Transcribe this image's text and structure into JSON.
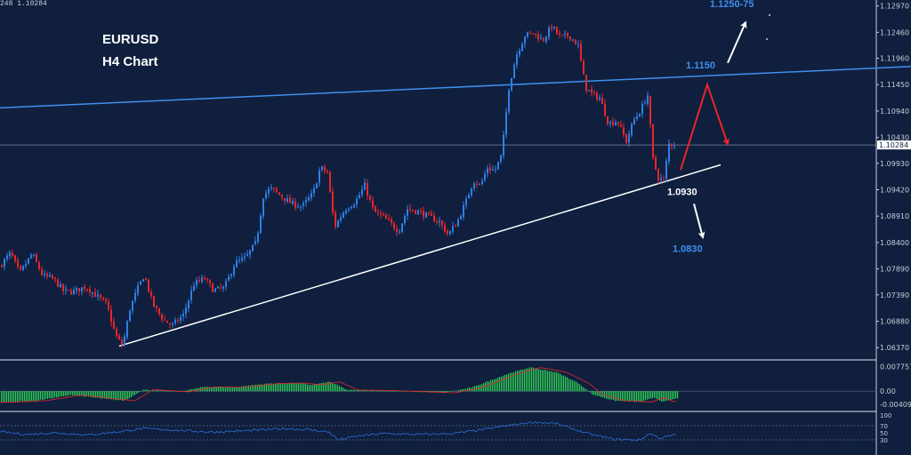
{
  "chart_data": {
    "type": "candlestick",
    "symbol": "EURUSD",
    "timeframe": "H4 Chart",
    "header_readout": "248 1.10284",
    "current_price": 1.10284,
    "current_price_label": "1.10284",
    "ylim": [
      1.0615,
      1.1305
    ],
    "price_ticks": [
      {
        "label": "1.12970",
        "value": 1.1297
      },
      {
        "label": "1.12460",
        "value": 1.1246
      },
      {
        "label": "1.11960",
        "value": 1.1196
      },
      {
        "label": "1.11450",
        "value": 1.1145
      },
      {
        "label": "1.10940",
        "value": 1.1094
      },
      {
        "label": "1.10430",
        "value": 1.1043
      },
      {
        "label": "1.09930",
        "value": 1.0993
      },
      {
        "label": "1.09420",
        "value": 1.0942
      },
      {
        "label": "1.08910",
        "value": 1.0891
      },
      {
        "label": "1.08400",
        "value": 1.084
      },
      {
        "label": "1.07890",
        "value": 1.0789
      },
      {
        "label": "1.07390",
        "value": 1.0739
      },
      {
        "label": "1.06880",
        "value": 1.0688
      },
      {
        "label": "1.06370",
        "value": 1.0637
      }
    ],
    "price_path": [
      [
        0,
        1.0795
      ],
      [
        12,
        1.082
      ],
      [
        22,
        1.078
      ],
      [
        36,
        1.0818
      ],
      [
        48,
        1.0776
      ],
      [
        60,
        1.077
      ],
      [
        72,
        1.0745
      ],
      [
        84,
        1.0746
      ],
      [
        96,
        1.0755
      ],
      [
        108,
        1.0738
      ],
      [
        120,
        1.072
      ],
      [
        130,
        1.066
      ],
      [
        138,
        1.064
      ],
      [
        146,
        1.0712
      ],
      [
        154,
        1.0748
      ],
      [
        162,
        1.0778
      ],
      [
        172,
        1.072
      ],
      [
        184,
        1.069
      ],
      [
        194,
        1.068
      ],
      [
        206,
        1.07
      ],
      [
        218,
        1.076
      ],
      [
        230,
        1.077
      ],
      [
        240,
        1.0748
      ],
      [
        252,
        1.0752
      ],
      [
        264,
        1.08
      ],
      [
        276,
        1.081
      ],
      [
        288,
        1.084
      ],
      [
        296,
        1.093
      ],
      [
        304,
        1.0945
      ],
      [
        316,
        1.093
      ],
      [
        328,
        1.0915
      ],
      [
        340,
        1.091
      ],
      [
        352,
        1.0935
      ],
      [
        360,
        1.0985
      ],
      [
        368,
        1.0975
      ],
      [
        376,
        1.087
      ],
      [
        388,
        1.0905
      ],
      [
        400,
        1.092
      ],
      [
        410,
        1.095
      ],
      [
        420,
        1.09
      ],
      [
        430,
        1.089
      ],
      [
        440,
        1.0875
      ],
      [
        448,
        1.0862
      ],
      [
        458,
        1.0905
      ],
      [
        470,
        1.09
      ],
      [
        482,
        1.089
      ],
      [
        494,
        1.088
      ],
      [
        504,
        1.0855
      ],
      [
        514,
        1.088
      ],
      [
        524,
        1.092
      ],
      [
        532,
        1.096
      ],
      [
        540,
        1.095
      ],
      [
        548,
        1.0985
      ],
      [
        556,
        1.0978
      ],
      [
        564,
        1.101
      ],
      [
        572,
        1.114
      ],
      [
        580,
        1.12
      ],
      [
        590,
        1.124
      ],
      [
        600,
        1.1245
      ],
      [
        610,
        1.123
      ],
      [
        620,
        1.1258
      ],
      [
        630,
        1.1236
      ],
      [
        640,
        1.124
      ],
      [
        650,
        1.122
      ],
      [
        658,
        1.114
      ],
      [
        666,
        1.1125
      ],
      [
        674,
        1.112
      ],
      [
        684,
        1.107
      ],
      [
        694,
        1.1075
      ],
      [
        704,
        1.1035
      ],
      [
        712,
        1.1075
      ],
      [
        720,
        1.1095
      ],
      [
        728,
        1.1125
      ],
      [
        734,
        1.1
      ],
      [
        740,
        1.0965
      ],
      [
        746,
        1.096
      ],
      [
        752,
        1.103
      ],
      [
        760,
        1.103
      ]
    ],
    "trendlines": [
      {
        "name": "blue-resistance",
        "color": "#3f8ff0",
        "points": [
          [
            0,
            1.11
          ],
          [
            1024,
            1.118
          ]
        ]
      },
      {
        "name": "white-support",
        "color": "#ffffff",
        "points": [
          [
            134,
            1.064
          ],
          [
            810,
            1.099
          ]
        ]
      }
    ],
    "projections": [
      {
        "name": "red-scenario",
        "color": "#e8262c",
        "points": [
          [
            765,
            1.098
          ],
          [
            795,
            1.1145
          ],
          [
            818,
            1.103
          ]
        ]
      },
      {
        "name": "white-up-arrow",
        "color": "#ffffff",
        "points": [
          [
            818,
            1.1187
          ],
          [
            838,
            1.1265
          ]
        ]
      },
      {
        "name": "white-down-arrow",
        "color": "#ffffff",
        "points": [
          [
            780,
            1.0915
          ],
          [
            790,
            1.085
          ]
        ]
      }
    ],
    "annotations": [
      {
        "text": "1.1250-75",
        "color": "#3f8ff0",
        "anchor_value": 1.1295
      },
      {
        "text": "1.1150",
        "color": "#3f8ff0",
        "anchor_value": 1.1176
      },
      {
        "text": "1.0930",
        "color": "#ffffff",
        "anchor_value": 1.0932
      },
      {
        "text": "1.0830",
        "color": "#3f8ff0",
        "anchor_value": 1.0822
      }
    ],
    "colors": {
      "background": "#0f1f3d",
      "bull_candle": "#2f7fe6",
      "bear_candle": "#e8262c",
      "macd_hist": "#2ecc55",
      "macd_signal": "#e8262c",
      "rsi_line": "#2f6fdc",
      "separator": "#9aa3b5"
    },
    "macd": {
      "ticks": [
        {
          "label": "0.007757",
          "value": 0.007757
        },
        {
          "label": "0.00",
          "value": 0
        },
        {
          "label": "-0.004093",
          "value": -0.004093
        }
      ],
      "ylim": [
        -0.005,
        0.0085
      ],
      "hist_path": [
        [
          0,
          -0.0035
        ],
        [
          40,
          -0.003
        ],
        [
          80,
          -0.0012
        ],
        [
          120,
          -0.0025
        ],
        [
          140,
          -0.003
        ],
        [
          160,
          0.0005
        ],
        [
          200,
          -0.0002
        ],
        [
          230,
          0.0014
        ],
        [
          260,
          0.0012
        ],
        [
          300,
          0.0024
        ],
        [
          330,
          0.0026
        ],
        [
          350,
          0.002
        ],
        [
          370,
          0.003
        ],
        [
          390,
          0.0004
        ],
        [
          430,
          0.0002
        ],
        [
          470,
          -0.0002
        ],
        [
          500,
          -0.0005
        ],
        [
          530,
          0.0012
        ],
        [
          570,
          0.0055
        ],
        [
          595,
          0.0075
        ],
        [
          625,
          0.006
        ],
        [
          650,
          0.0025
        ],
        [
          665,
          -0.001
        ],
        [
          690,
          -0.003
        ],
        [
          720,
          -0.0034
        ],
        [
          735,
          -0.002
        ],
        [
          745,
          -0.0034
        ],
        [
          761,
          -0.0022
        ]
      ]
    },
    "rsi": {
      "ticks": [
        {
          "label": "100",
          "value": 100
        },
        {
          "label": "70",
          "value": 70
        },
        {
          "label": "50",
          "value": 50
        },
        {
          "label": "30",
          "value": 30
        }
      ],
      "ylim": [
        0,
        100
      ],
      "path": [
        [
          0,
          53
        ],
        [
          30,
          45
        ],
        [
          60,
          50
        ],
        [
          100,
          44
        ],
        [
          140,
          55
        ],
        [
          160,
          62
        ],
        [
          200,
          57
        ],
        [
          240,
          52
        ],
        [
          280,
          56
        ],
        [
          320,
          62
        ],
        [
          350,
          58
        ],
        [
          370,
          52
        ],
        [
          380,
          30
        ],
        [
          400,
          40
        ],
        [
          430,
          48
        ],
        [
          470,
          45
        ],
        [
          510,
          48
        ],
        [
          540,
          58
        ],
        [
          570,
          70
        ],
        [
          600,
          80
        ],
        [
          625,
          76
        ],
        [
          645,
          60
        ],
        [
          665,
          45
        ],
        [
          690,
          32
        ],
        [
          720,
          30
        ],
        [
          730,
          48
        ],
        [
          742,
          35
        ],
        [
          760,
          45
        ]
      ]
    }
  }
}
